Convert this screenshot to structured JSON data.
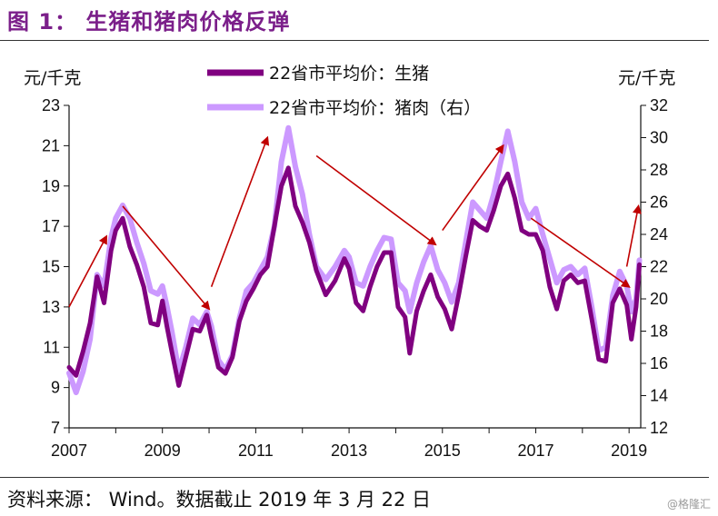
{
  "title": "图 1：  生猪和猪肉价格反弹",
  "source": "资料来源：  Wind。数据截止 2019 年 3 月 22 日",
  "watermark": "@格隆汇",
  "colors": {
    "title": "#7b1f8a",
    "hog": "#800080",
    "pork": "#cc99ff",
    "arrow": "#c00000"
  },
  "chart_data": {
    "type": "line",
    "x_axis": {
      "min": 2007.0,
      "max": 2019.25,
      "ticks": [
        "2007",
        "2009",
        "2011",
        "2013",
        "2015",
        "2017",
        "2019"
      ]
    },
    "y_left": {
      "unit": "元/千克",
      "min": 7,
      "max": 23,
      "ticks": [
        23,
        21,
        19,
        17,
        15,
        13,
        11,
        9,
        7
      ]
    },
    "y_right": {
      "unit": "元/千克",
      "min": 12,
      "max": 32,
      "ticks": [
        32,
        30,
        28,
        26,
        24,
        22,
        20,
        18,
        16,
        14,
        12
      ]
    },
    "series": [
      {
        "name": "22省市平均价：生猪",
        "axis": "left",
        "color": "#800080",
        "points": [
          [
            2007.0,
            10.0
          ],
          [
            2007.15,
            9.6
          ],
          [
            2007.3,
            10.8
          ],
          [
            2007.45,
            12.2
          ],
          [
            2007.6,
            14.5
          ],
          [
            2007.75,
            13.2
          ],
          [
            2007.9,
            15.8
          ],
          [
            2008.0,
            16.8
          ],
          [
            2008.15,
            17.4
          ],
          [
            2008.3,
            16.0
          ],
          [
            2008.45,
            15.1
          ],
          [
            2008.6,
            14.0
          ],
          [
            2008.75,
            12.2
          ],
          [
            2008.9,
            12.1
          ],
          [
            2009.0,
            13.3
          ],
          [
            2009.1,
            12.0
          ],
          [
            2009.2,
            10.8
          ],
          [
            2009.35,
            9.1
          ],
          [
            2009.5,
            10.5
          ],
          [
            2009.65,
            11.9
          ],
          [
            2009.8,
            11.8
          ],
          [
            2009.95,
            12.6
          ],
          [
            2010.05,
            11.5
          ],
          [
            2010.2,
            10.0
          ],
          [
            2010.35,
            9.7
          ],
          [
            2010.5,
            10.5
          ],
          [
            2010.65,
            12.3
          ],
          [
            2010.8,
            13.3
          ],
          [
            2010.95,
            13.9
          ],
          [
            2011.1,
            14.6
          ],
          [
            2011.25,
            15.0
          ],
          [
            2011.4,
            17.0
          ],
          [
            2011.55,
            19.0
          ],
          [
            2011.7,
            19.9
          ],
          [
            2011.85,
            18.0
          ],
          [
            2012.0,
            17.2
          ],
          [
            2012.15,
            16.2
          ],
          [
            2012.3,
            14.8
          ],
          [
            2012.5,
            13.6
          ],
          [
            2012.7,
            14.3
          ],
          [
            2012.9,
            15.4
          ],
          [
            2013.0,
            14.9
          ],
          [
            2013.15,
            13.2
          ],
          [
            2013.3,
            12.8
          ],
          [
            2013.45,
            14.0
          ],
          [
            2013.6,
            15.0
          ],
          [
            2013.75,
            15.7
          ],
          [
            2013.9,
            15.7
          ],
          [
            2014.05,
            13.0
          ],
          [
            2014.2,
            12.5
          ],
          [
            2014.3,
            10.7
          ],
          [
            2014.45,
            12.8
          ],
          [
            2014.6,
            13.8
          ],
          [
            2014.75,
            14.6
          ],
          [
            2014.9,
            13.5
          ],
          [
            2015.05,
            12.9
          ],
          [
            2015.2,
            11.9
          ],
          [
            2015.35,
            13.6
          ],
          [
            2015.5,
            15.5
          ],
          [
            2015.65,
            17.3
          ],
          [
            2015.8,
            17.0
          ],
          [
            2015.95,
            16.8
          ],
          [
            2016.1,
            17.8
          ],
          [
            2016.25,
            19.0
          ],
          [
            2016.4,
            19.6
          ],
          [
            2016.55,
            18.4
          ],
          [
            2016.7,
            16.8
          ],
          [
            2016.85,
            16.6
          ],
          [
            2017.0,
            16.6
          ],
          [
            2017.15,
            15.8
          ],
          [
            2017.3,
            14.0
          ],
          [
            2017.45,
            12.9
          ],
          [
            2017.6,
            14.3
          ],
          [
            2017.75,
            14.6
          ],
          [
            2017.9,
            14.2
          ],
          [
            2018.05,
            14.3
          ],
          [
            2018.2,
            12.4
          ],
          [
            2018.35,
            10.4
          ],
          [
            2018.5,
            10.3
          ],
          [
            2018.65,
            13.2
          ],
          [
            2018.8,
            13.9
          ],
          [
            2018.95,
            13.1
          ],
          [
            2019.05,
            11.4
          ],
          [
            2019.15,
            13.0
          ],
          [
            2019.22,
            15.1
          ]
        ]
      },
      {
        "name": "22省市平均价：猪肉（右）",
        "axis": "right",
        "color": "#cc99ff",
        "points": [
          [
            2007.0,
            15.4
          ],
          [
            2007.15,
            14.2
          ],
          [
            2007.3,
            15.5
          ],
          [
            2007.45,
            17.5
          ],
          [
            2007.6,
            21.5
          ],
          [
            2007.75,
            20.8
          ],
          [
            2007.9,
            23.8
          ],
          [
            2008.0,
            25.0
          ],
          [
            2008.15,
            25.8
          ],
          [
            2008.3,
            25.0
          ],
          [
            2008.45,
            23.5
          ],
          [
            2008.6,
            22.2
          ],
          [
            2008.75,
            20.5
          ],
          [
            2008.9,
            20.3
          ],
          [
            2009.0,
            20.8
          ],
          [
            2009.1,
            19.5
          ],
          [
            2009.2,
            18.0
          ],
          [
            2009.35,
            15.5
          ],
          [
            2009.5,
            17.0
          ],
          [
            2009.65,
            18.8
          ],
          [
            2009.8,
            18.4
          ],
          [
            2009.95,
            19.2
          ],
          [
            2010.05,
            18.3
          ],
          [
            2010.2,
            16.2
          ],
          [
            2010.35,
            15.6
          ],
          [
            2010.5,
            16.5
          ],
          [
            2010.65,
            18.8
          ],
          [
            2010.8,
            20.5
          ],
          [
            2010.95,
            21.0
          ],
          [
            2011.1,
            21.8
          ],
          [
            2011.25,
            22.6
          ],
          [
            2011.4,
            24.5
          ],
          [
            2011.55,
            28.5
          ],
          [
            2011.7,
            30.6
          ],
          [
            2011.85,
            28.2
          ],
          [
            2012.0,
            26.5
          ],
          [
            2012.15,
            24.0
          ],
          [
            2012.3,
            22.0
          ],
          [
            2012.5,
            21.2
          ],
          [
            2012.7,
            22.0
          ],
          [
            2012.9,
            23.0
          ],
          [
            2013.0,
            22.6
          ],
          [
            2013.15,
            21.0
          ],
          [
            2013.3,
            20.8
          ],
          [
            2013.45,
            22.0
          ],
          [
            2013.6,
            23.0
          ],
          [
            2013.75,
            23.8
          ],
          [
            2013.9,
            23.7
          ],
          [
            2014.05,
            21.0
          ],
          [
            2014.2,
            20.5
          ],
          [
            2014.3,
            19.2
          ],
          [
            2014.45,
            21.0
          ],
          [
            2014.6,
            22.3
          ],
          [
            2014.75,
            23.3
          ],
          [
            2014.9,
            21.8
          ],
          [
            2015.05,
            21.0
          ],
          [
            2015.2,
            19.8
          ],
          [
            2015.35,
            21.0
          ],
          [
            2015.5,
            23.5
          ],
          [
            2015.65,
            26.0
          ],
          [
            2015.8,
            25.5
          ],
          [
            2015.95,
            25.0
          ],
          [
            2016.1,
            26.5
          ],
          [
            2016.25,
            28.5
          ],
          [
            2016.4,
            30.4
          ],
          [
            2016.55,
            28.5
          ],
          [
            2016.7,
            26.0
          ],
          [
            2016.85,
            25.0
          ],
          [
            2017.0,
            25.6
          ],
          [
            2017.15,
            24.0
          ],
          [
            2017.3,
            22.5
          ],
          [
            2017.45,
            21.0
          ],
          [
            2017.6,
            21.8
          ],
          [
            2017.75,
            22.0
          ],
          [
            2017.9,
            21.5
          ],
          [
            2018.05,
            21.9
          ],
          [
            2018.2,
            19.5
          ],
          [
            2018.35,
            16.8
          ],
          [
            2018.5,
            17.0
          ],
          [
            2018.65,
            20.2
          ],
          [
            2018.8,
            21.7
          ],
          [
            2018.95,
            20.8
          ],
          [
            2019.05,
            19.2
          ],
          [
            2019.15,
            20.0
          ],
          [
            2019.22,
            22.4
          ]
        ]
      }
    ],
    "trend_arrows": [
      {
        "from": [
          2007.0,
          13.0
        ],
        "to": [
          2007.8,
          16.5
        ]
      },
      {
        "from": [
          2008.15,
          18.0
        ],
        "to": [
          2010.0,
          12.9
        ]
      },
      {
        "from": [
          2010.05,
          14.0
        ],
        "to": [
          2011.25,
          21.4
        ]
      },
      {
        "from": [
          2012.3,
          20.5
        ],
        "to": [
          2014.85,
          16.1
        ]
      },
      {
        "from": [
          2015.0,
          16.8
        ],
        "to": [
          2016.3,
          21.0
        ]
      },
      {
        "from": [
          2016.9,
          17.4
        ],
        "to": [
          2019.0,
          14.0
        ]
      },
      {
        "from": [
          2018.95,
          15.0
        ],
        "to": [
          2019.2,
          18.0
        ]
      }
    ]
  }
}
